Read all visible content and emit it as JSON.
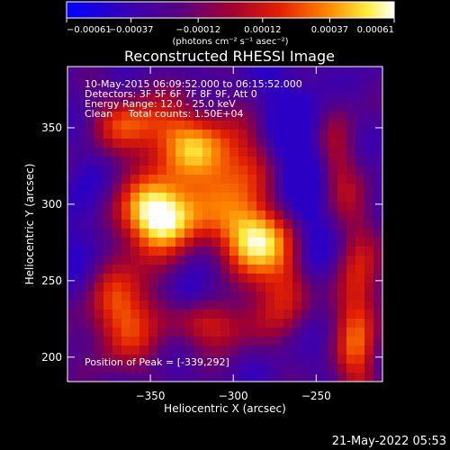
{
  "chart_data": {
    "type": "heatmap",
    "title": "Reconstructed RHESSI Image",
    "xlabel": "Heliocentric X (arcsec)",
    "ylabel": "Heliocentric Y (arcsec)",
    "xlim": [
      -400,
      -210
    ],
    "ylim": [
      184,
      390
    ],
    "x_ticks": [
      -350,
      -300,
      -250
    ],
    "x_tick_labels": [
      "−350",
      "−300",
      "−250"
    ],
    "y_ticks": [
      200,
      250,
      300,
      350
    ],
    "y_tick_labels": [
      "200",
      "250",
      "300",
      "350"
    ],
    "colorbar": {
      "range": [
        -0.00061,
        0.00061
      ],
      "tick_values": [
        -0.00061,
        -0.00037,
        -0.00012,
        0.00012,
        0.00037,
        0.00061
      ],
      "tick_labels": [
        "−0.00061",
        "−0.00037",
        "−0.00012",
        "0.00012",
        "0.00037",
        "0.00061"
      ],
      "unit_label": "(photons cm⁻² s⁻¹ asec⁻²)",
      "colormap": "blue-purple-red-yellow-white"
    },
    "annotations": [
      "10-May-2015 06:09:52.000 to 06:15:52.000",
      "Detectors: 3F 5F 6F 7F 8F 9F, Att 0",
      "Energy Range: 12.0 - 25.0 keV",
      "Clean     Total counts: 1.50E+04"
    ],
    "peak_label": "Position of Peak = [-339,292]",
    "peak": [
      -339,
      292
    ],
    "secondary_peak": [
      -283,
      279
    ]
  },
  "footer": {
    "date": "21-May-2022 05:53"
  }
}
